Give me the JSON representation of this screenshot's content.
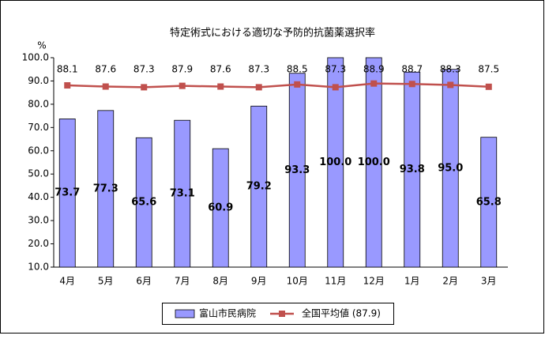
{
  "chart_data": {
    "type": "bar",
    "title": "特定術式における適切な予防的抗菌薬選択率",
    "y_label": "%",
    "categories": [
      "4月",
      "5月",
      "6月",
      "7月",
      "8月",
      "9月",
      "10月",
      "11月",
      "12月",
      "1月",
      "2月",
      "3月"
    ],
    "series": [
      {
        "name": "富山市民病院",
        "type": "bar",
        "color": "#9999ff",
        "values": [
          73.7,
          77.3,
          65.6,
          73.1,
          60.9,
          79.2,
          93.3,
          100.0,
          100.0,
          93.8,
          95.0,
          65.8
        ],
        "value_labels": [
          "73.7",
          "77.3",
          "65.6",
          "73.1",
          "60.9",
          "79.2",
          "93.3",
          "100.0",
          "100.0",
          "93.8",
          "95.0",
          "65.8"
        ]
      },
      {
        "name": "全国平均値 (87.9)",
        "type": "line",
        "color": "#c0504d",
        "values": [
          88.1,
          87.6,
          87.3,
          87.9,
          87.6,
          87.3,
          88.5,
          87.3,
          88.9,
          88.7,
          88.3,
          87.5
        ]
      }
    ],
    "ylim": [
      10,
      100
    ],
    "yticks": [
      {
        "value": 10,
        "label": "10.0"
      },
      {
        "value": 20,
        "label": "20.0"
      },
      {
        "value": 30,
        "label": "30.0"
      },
      {
        "value": 40,
        "label": "40.0"
      },
      {
        "value": 50,
        "label": "50.0"
      },
      {
        "value": 60,
        "label": "60.0"
      },
      {
        "value": 70,
        "label": "70.0"
      },
      {
        "value": 80,
        "label": "80.0"
      },
      {
        "value": 90,
        "label": "90.0"
      },
      {
        "value": 100,
        "label": "100.0"
      }
    ],
    "grid": false,
    "legend": "bottom"
  }
}
